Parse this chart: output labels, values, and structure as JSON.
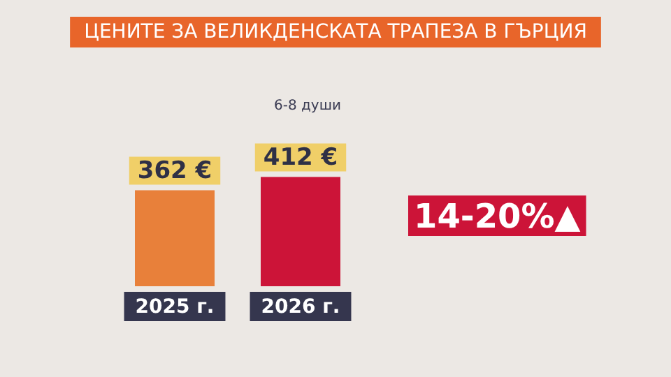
{
  "chart_data": {
    "type": "bar",
    "title": "ЦЕНИТЕ ЗА ВЕЛИКДЕНСКАТА ТРАПЕЗА В ГЪРЦИЯ",
    "subtitle": "6-8 души",
    "categories": [
      "2025 г.",
      "2026 г."
    ],
    "values": [
      362,
      412
    ],
    "colors": [
      "#e8803a",
      "#cc1438"
    ],
    "value_labels": [
      "362 €",
      "412 €"
    ],
    "annotations": [
      "14-20%▲"
    ],
    "tick_labels": "x"
  }
}
